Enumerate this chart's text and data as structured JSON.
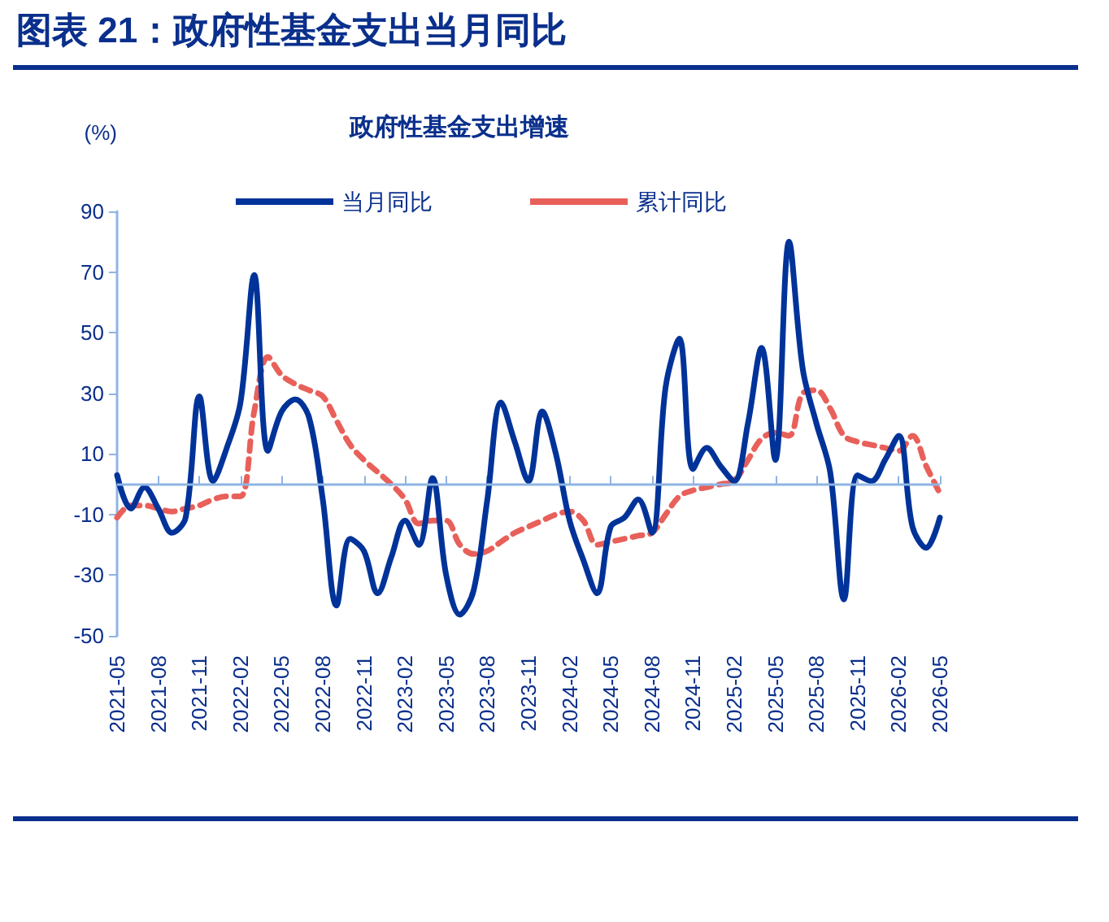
{
  "chart_data": {
    "type": "line",
    "title": "图表 21：政府性基金支出当月同比",
    "subtitle": "政府性基金支出增速",
    "ylabel": "(%)",
    "categories": [
      "2021-05",
      null,
      null,
      "2021-08",
      null,
      null,
      "2021-11",
      null,
      null,
      "2022-02",
      null,
      null,
      "2022-05",
      null,
      null,
      "2022-08",
      null,
      null,
      "2022-11",
      null,
      null,
      "2023-02",
      null,
      null,
      "2023-05",
      null,
      null,
      "2023-08",
      null,
      null,
      "2023-11",
      null,
      null,
      "2024-02",
      null,
      null,
      "2024-05",
      null,
      null,
      "2024-08",
      null,
      null,
      "2024-11",
      null,
      null,
      "2025-02",
      null,
      null,
      "2025-05",
      null,
      null,
      "2025-08",
      null,
      null,
      "2025-11",
      null,
      null,
      "2026-02",
      null,
      null,
      "2026-05"
    ],
    "series": [
      {
        "name": "当月同比",
        "color": "#003399",
        "line_style": "solid",
        "values": [
          3,
          -8,
          -1,
          -8,
          -16,
          -11,
          29,
          1,
          12,
          27,
          69,
          11,
          24,
          28,
          22,
          -5,
          -40,
          -18,
          -22,
          -36,
          -24,
          -12,
          -20,
          2,
          -30,
          -43,
          -35,
          -5,
          27,
          14,
          1,
          24,
          10,
          -12,
          -25,
          -36,
          -14,
          -11,
          -5,
          -16,
          32,
          48,
          5,
          12,
          6,
          1,
          20,
          45,
          8,
          80,
          38,
          20,
          4,
          -38,
          3,
          1,
          8,
          16,
          -14,
          -21,
          -11
        ]
      },
      {
        "name": "累计同比",
        "color": "#e8605a",
        "line_style": "dashed",
        "values": [
          -11,
          -7,
          -7,
          -8,
          -9,
          -8,
          -7,
          -5,
          -4,
          -4,
          24,
          42,
          36,
          33,
          31,
          29,
          21,
          13,
          8,
          4,
          0,
          -5,
          -13,
          -12,
          -12,
          -20,
          -23,
          -22,
          -19,
          -16,
          -14,
          -12,
          -10,
          -9,
          -12,
          -20,
          -19,
          -18,
          -17,
          -16,
          -10,
          -4,
          -2,
          -1,
          0,
          1,
          8,
          15,
          17,
          16,
          30,
          31,
          25,
          16,
          14,
          13,
          12,
          11,
          16,
          6,
          -3
        ]
      }
    ],
    "ylim": [
      -50,
      90
    ],
    "yticks": [
      -50,
      -30,
      -10,
      10,
      30,
      50,
      70,
      90
    ],
    "ref_lines": [
      {
        "axis": "y",
        "value": 0,
        "color": "#8fb4e3"
      }
    ],
    "grid": false,
    "legend": "top",
    "marker": "none"
  }
}
